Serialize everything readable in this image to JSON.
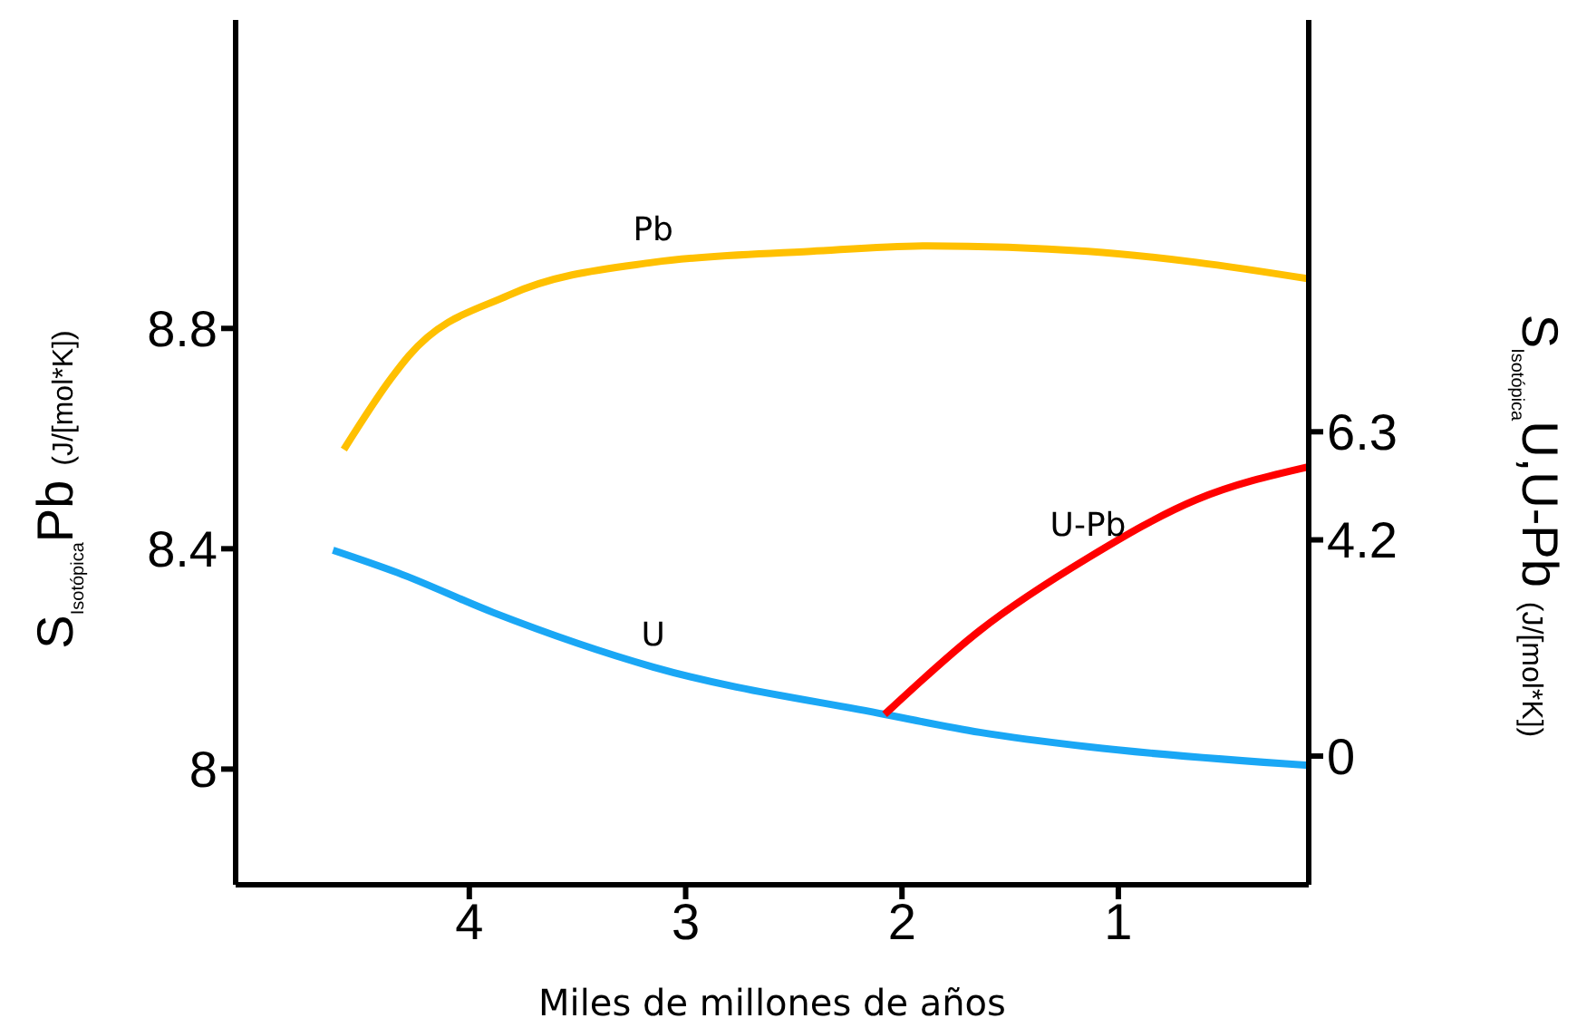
{
  "chart_data": {
    "type": "line",
    "xlabel": "Miles de millones de años",
    "ylabel": "S$_{Isotópica}$Pb (J/[mol*K])",
    "y2label": "S$_{Isotópica}$U,U-Pb (J/[mol*K])",
    "xlim": [
      5.08,
      0.12
    ],
    "xticks": [
      4,
      3,
      2,
      1
    ],
    "ylim": [
      7.79,
      9.36
    ],
    "yticks": [
      8,
      8.4,
      8.8
    ],
    "y2lim": [
      -2.5,
      14.3
    ],
    "y2ticks": [
      0,
      4.2,
      6.3
    ],
    "marker": "none",
    "line_style": "solid",
    "series": [
      {
        "name": "Pb",
        "color": "#ffc000",
        "x": [
          4.58,
          4.36,
          4.28,
          3.82,
          3.15,
          2.42,
          1.88,
          1.14,
          0.64,
          0.12
        ],
        "values": [
          8.58,
          8.71,
          8.75,
          8.86,
          8.92,
          8.94,
          8.95,
          8.94,
          8.92,
          8.89
        ]
      },
      {
        "name": "U",
        "color": "#1aa7f5",
        "axis": "y2",
        "x": [
          4.63,
          4.33,
          3.89,
          3.15,
          2.08,
          1.64,
          1.14,
          0.12
        ],
        "values": [
          4.0,
          3.56,
          2.79,
          1.73,
          0.81,
          0.46,
          0.18,
          -0.18
        ]
      },
      {
        "name": "U-Pb",
        "color": "#ff0000",
        "axis": "y2",
        "x": [
          2.08,
          1.64,
          1.14,
          0.64,
          0.12
        ],
        "values": [
          0.81,
          2.44,
          3.85,
          4.98,
          5.62
        ]
      }
    ]
  }
}
